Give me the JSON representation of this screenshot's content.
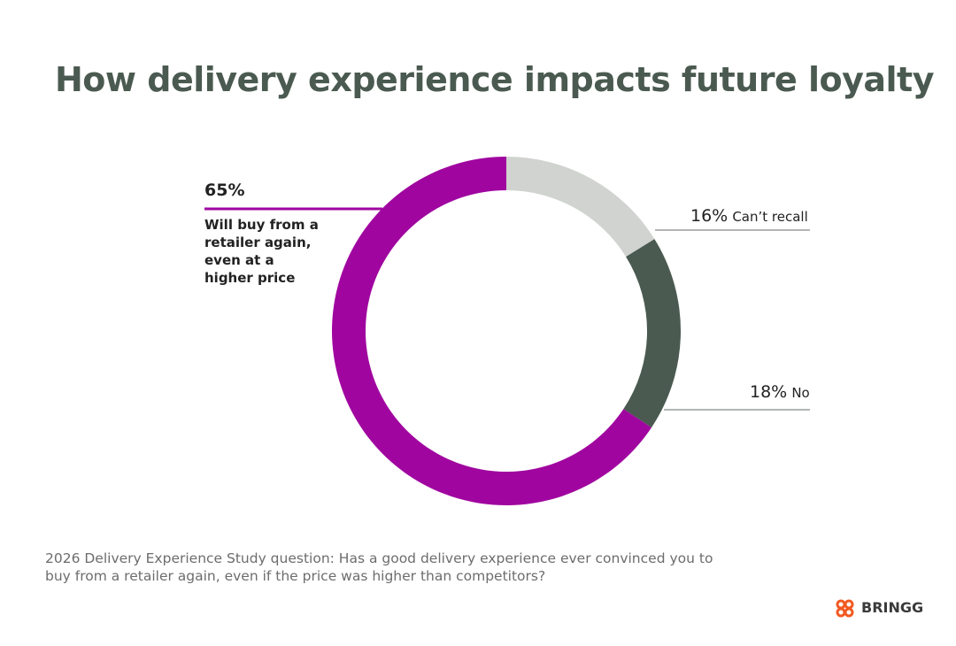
{
  "chart_data": {
    "type": "donut",
    "title": "How delivery experience impacts future loyalty",
    "categories": [
      "Can’t recall",
      "No",
      "Will buy from a retailer again, even at a higher price"
    ],
    "values": [
      16,
      18,
      65
    ],
    "value_labels": [
      "16%",
      "18%",
      "65%"
    ],
    "colors": [
      "#d0d3cf",
      "#4a5a50",
      "#a0069f"
    ],
    "footnote": "2026 Delivery Experience Study question: Has a good delivery experience ever convinced you to buy from a retailer again, even if the price was higher than competitors?",
    "brand": "BRINGG"
  }
}
